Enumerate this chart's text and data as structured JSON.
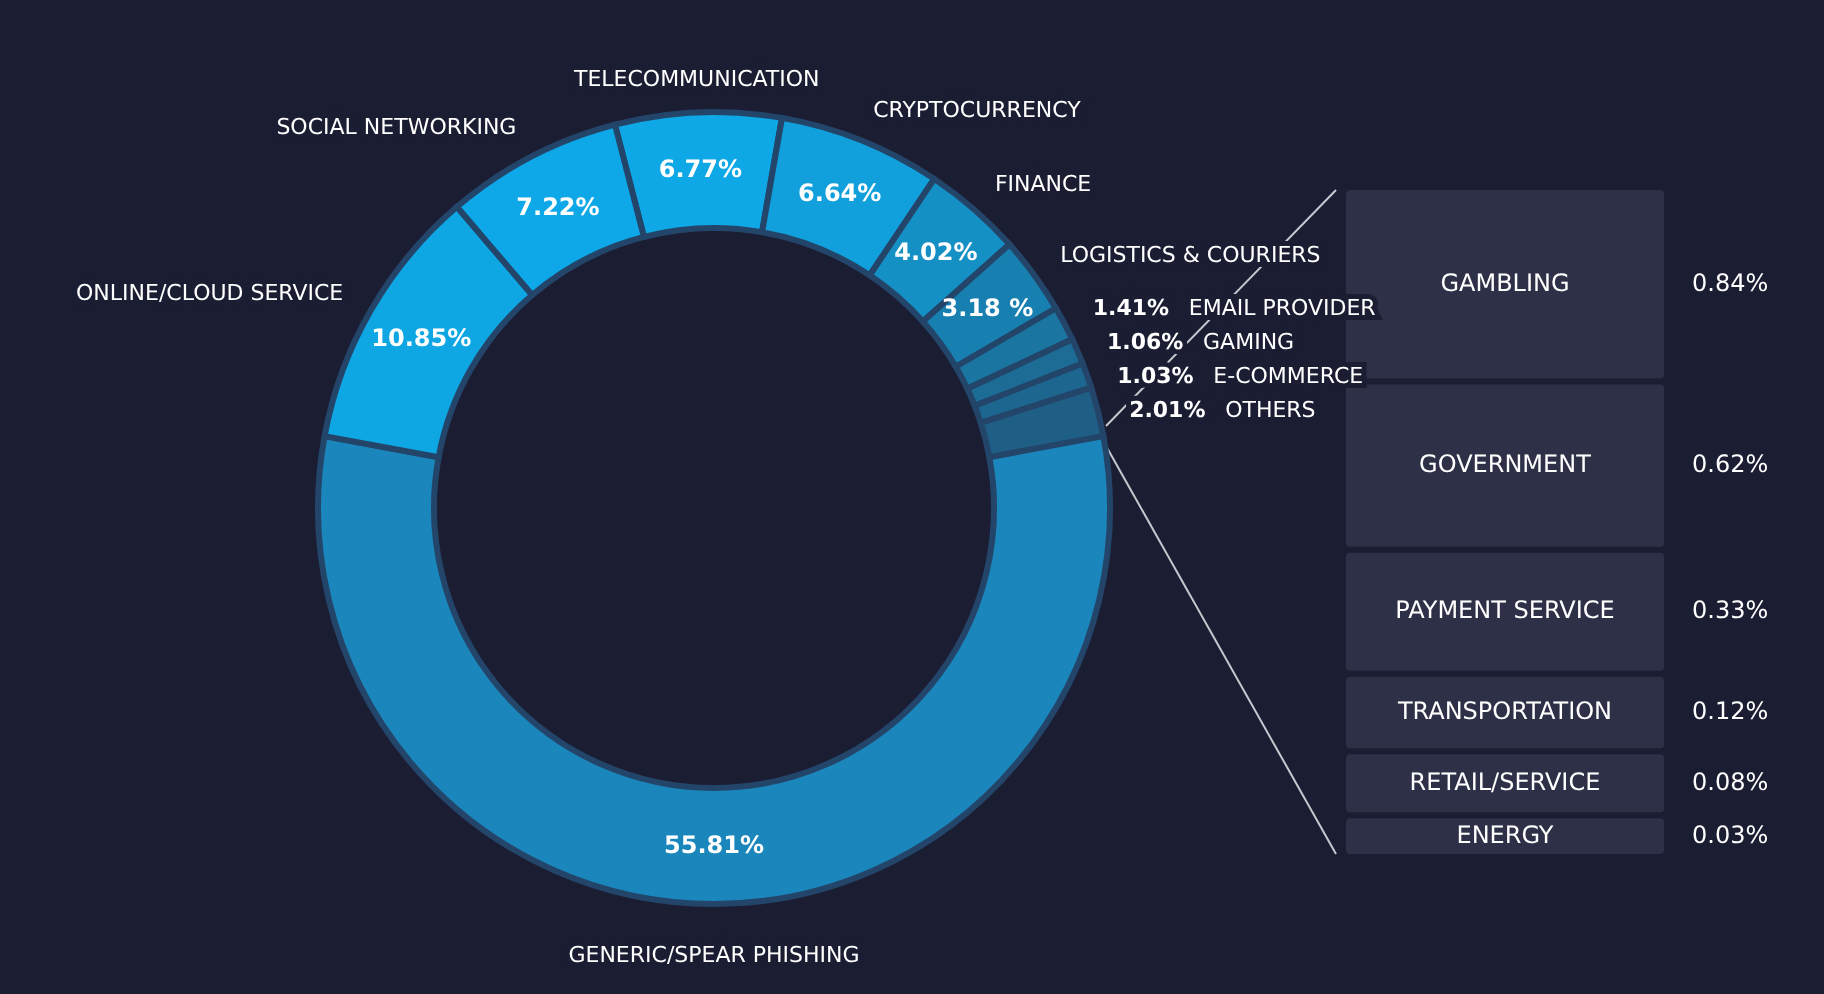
{
  "chart_data": [
    {
      "type": "donut",
      "categories": [
        "TELECOMMUNICATION",
        "CRYPTOCURRENCY",
        "FINANCE",
        "LOGISTICS & COURIERS",
        "EMAIL PROVIDER",
        "GAMING",
        "E-COMMERCE",
        "OTHERS",
        "GENERIC/SPEAR PHISHING",
        "ONLINE/CLOUD SERVICE",
        "SOCIAL NETWORKING"
      ],
      "values": [
        6.77,
        6.64,
        4.02,
        3.18,
        1.41,
        1.06,
        1.03,
        2.01,
        55.81,
        10.85,
        7.22
      ],
      "value_labels": [
        "6.77%",
        "6.64%",
        "4.02%",
        "3.18 %",
        "1.41%",
        "1.06%",
        "1.03%",
        "2.01%",
        "55.81%",
        "10.85%",
        "7.22%"
      ],
      "colors": [
        "#0fa8e6",
        "#11a0db",
        "#1590c4",
        "#1880b0",
        "#1a75a0",
        "#1c6c95",
        "#1d6690",
        "#1f5f86",
        "#1a86bb",
        "#0fa6e4",
        "#0ea8e8"
      ]
    },
    {
      "type": "other",
      "categories": [
        "GAMBLING",
        "GOVERNMENT",
        "PAYMENT SERVICE",
        "TRANSPORTATION",
        "RETAIL/SERVICE",
        "ENERGY"
      ],
      "values": [
        0.84,
        0.62,
        0.33,
        0.12,
        0.08,
        0.03
      ],
      "value_labels": [
        "0.84%",
        "0.62%",
        "0.33%",
        "0.12%",
        "0.08%",
        "0.03%"
      ],
      "color": "#2d3047"
    }
  ]
}
